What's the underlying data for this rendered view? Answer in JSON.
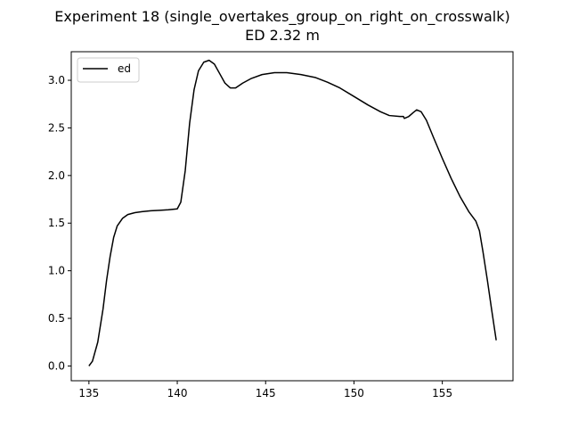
{
  "chart_data": {
    "type": "line",
    "title": "Experiment 18 (single_overtakes_group_on_right_on_crosswalk)",
    "subtitle": "ED 2.32 m",
    "xlabel": "",
    "ylabel": "",
    "xlim": [
      134.0,
      159.0
    ],
    "ylim": [
      -0.155,
      3.3
    ],
    "grid": false,
    "legend_position": "upper-left",
    "x_ticks": [
      135,
      140,
      145,
      150,
      155
    ],
    "y_ticks": [
      0.0,
      0.5,
      1.0,
      1.5,
      2.0,
      2.5,
      3.0
    ],
    "x_tick_labels": [
      "135",
      "140",
      "145",
      "150",
      "155"
    ],
    "y_tick_labels": [
      "0.0",
      "0.5",
      "1.0",
      "1.5",
      "2.0",
      "2.5",
      "3.0"
    ],
    "series": [
      {
        "name": "ed",
        "color": "#000000",
        "points": [
          [
            135.0,
            0.0
          ],
          [
            135.2,
            0.05
          ],
          [
            135.5,
            0.25
          ],
          [
            135.8,
            0.6
          ],
          [
            136.0,
            0.9
          ],
          [
            136.2,
            1.15
          ],
          [
            136.4,
            1.35
          ],
          [
            136.6,
            1.47
          ],
          [
            136.9,
            1.55
          ],
          [
            137.2,
            1.59
          ],
          [
            137.6,
            1.61
          ],
          [
            138.0,
            1.62
          ],
          [
            138.5,
            1.63
          ],
          [
            139.0,
            1.635
          ],
          [
            139.5,
            1.64
          ],
          [
            140.0,
            1.65
          ],
          [
            140.2,
            1.72
          ],
          [
            140.45,
            2.05
          ],
          [
            140.7,
            2.55
          ],
          [
            140.95,
            2.9
          ],
          [
            141.2,
            3.1
          ],
          [
            141.5,
            3.19
          ],
          [
            141.8,
            3.21
          ],
          [
            142.1,
            3.17
          ],
          [
            142.4,
            3.07
          ],
          [
            142.7,
            2.97
          ],
          [
            143.0,
            2.92
          ],
          [
            143.3,
            2.92
          ],
          [
            143.7,
            2.97
          ],
          [
            144.2,
            3.02
          ],
          [
            144.8,
            3.06
          ],
          [
            145.5,
            3.08
          ],
          [
            146.2,
            3.08
          ],
          [
            147.0,
            3.06
          ],
          [
            147.8,
            3.03
          ],
          [
            148.5,
            2.98
          ],
          [
            149.2,
            2.92
          ],
          [
            150.0,
            2.83
          ],
          [
            150.8,
            2.74
          ],
          [
            151.5,
            2.67
          ],
          [
            152.0,
            2.63
          ],
          [
            152.6,
            2.62
          ],
          [
            152.8,
            2.62
          ],
          [
            152.85,
            2.6
          ],
          [
            153.1,
            2.62
          ],
          [
            153.35,
            2.66
          ],
          [
            153.55,
            2.69
          ],
          [
            153.8,
            2.67
          ],
          [
            154.1,
            2.58
          ],
          [
            154.5,
            2.4
          ],
          [
            155.0,
            2.18
          ],
          [
            155.5,
            1.97
          ],
          [
            156.0,
            1.78
          ],
          [
            156.5,
            1.62
          ],
          [
            156.9,
            1.52
          ],
          [
            157.1,
            1.42
          ],
          [
            157.3,
            1.2
          ],
          [
            157.55,
            0.9
          ],
          [
            157.8,
            0.58
          ],
          [
            158.05,
            0.27
          ]
        ]
      }
    ]
  }
}
